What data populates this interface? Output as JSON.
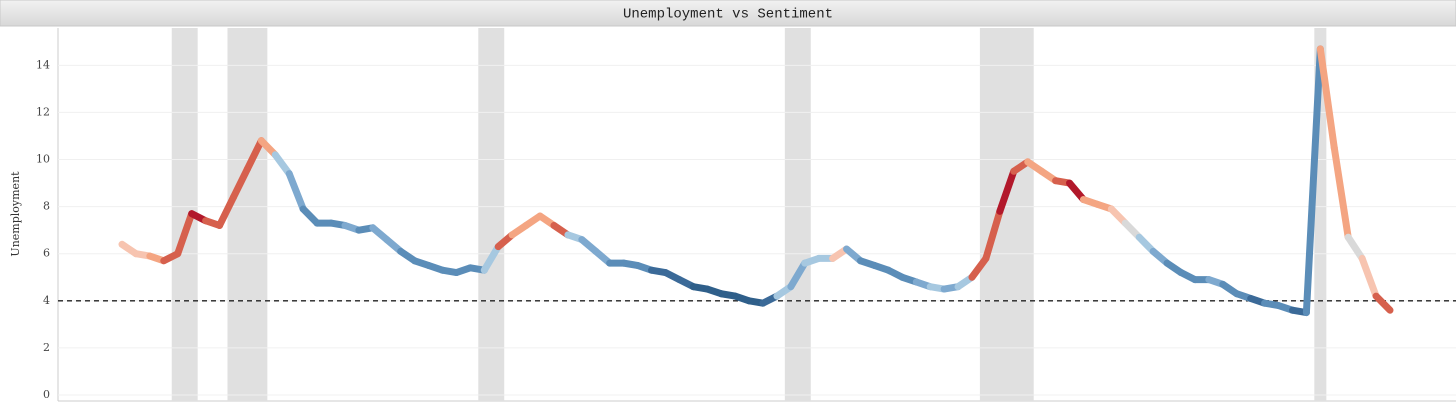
{
  "chart_data": {
    "type": "line",
    "title": "Unemployment vs Sentiment",
    "y_label": "Unemployment",
    "categories": [
      null,
      null,
      null,
      null,
      null,
      null,
      null,
      null,
      null,
      null,
      null,
      null,
      null,
      null,
      null,
      null,
      null,
      null,
      null,
      null,
      null,
      null,
      null,
      null,
      null,
      null,
      null,
      null,
      null,
      null,
      null,
      null,
      null,
      null,
      null,
      null,
      null,
      null,
      null,
      null,
      null,
      null,
      null,
      null,
      null,
      null,
      null,
      null,
      null,
      null,
      null,
      null,
      null,
      null,
      null,
      null,
      null,
      null,
      null,
      null,
      null,
      null,
      null,
      null,
      null,
      null,
      null,
      null,
      null,
      null,
      null,
      null,
      null,
      null,
      null,
      null,
      null,
      null,
      null,
      null,
      null,
      null,
      null,
      null,
      null,
      null,
      null,
      null,
      null,
      null,
      null,
      null
    ],
    "values": [
      6.4,
      6.0,
      5.9,
      5.7,
      6.0,
      7.7,
      7.4,
      7.2,
      8.4,
      9.6,
      10.8,
      10.2,
      9.4,
      7.9,
      7.3,
      7.3,
      7.2,
      7.0,
      7.1,
      6.6,
      6.1,
      5.7,
      5.5,
      5.3,
      5.2,
      5.4,
      5.3,
      6.3,
      6.8,
      7.2,
      7.6,
      7.2,
      6.8,
      6.6,
      6.1,
      5.6,
      5.6,
      5.5,
      5.3,
      5.2,
      4.9,
      4.6,
      4.5,
      4.3,
      4.2,
      4.0,
      3.9,
      4.2,
      4.6,
      5.6,
      5.8,
      5.8,
      6.2,
      5.7,
      5.5,
      5.3,
      5.0,
      4.8,
      4.6,
      4.5,
      4.6,
      5.0,
      5.8,
      7.8,
      9.5,
      9.9,
      9.5,
      9.1,
      9.0,
      8.3,
      8.1,
      7.9,
      7.3,
      6.7,
      6.1,
      5.6,
      5.2,
      4.9,
      4.9,
      4.7,
      4.3,
      4.1,
      3.9,
      3.8,
      3.6,
      3.5,
      14.7,
      10.5,
      6.7,
      5.8,
      4.2,
      3.6
    ],
    "colors": [
      "#f7c4b0",
      "#f7c4b0",
      "#f4a582",
      "#d6604d",
      "#d6604d",
      "#b2182b",
      "#d6604d",
      "#d6604d",
      "#d6604d",
      "#d6604d",
      "#f4a582",
      "#a6c8e0",
      "#7ea9cf",
      "#5b8db8",
      "#5b8db8",
      "#5b8db8",
      "#7ea9cf",
      "#5b8db8",
      "#7ea9cf",
      "#7ea9cf",
      "#5b8db8",
      "#5b8db8",
      "#5b8db8",
      "#5b8db8",
      "#5b8db8",
      "#5b8db8",
      "#a6c8e0",
      "#d6604d",
      "#f4a582",
      "#f4a582",
      "#f4a582",
      "#d6604d",
      "#a6c8e0",
      "#7ea9cf",
      "#7ea9cf",
      "#5b8db8",
      "#5b8db8",
      "#5b8db8",
      "#3b6a98",
      "#3b6a98",
      "#3b6a98",
      "#2f5f8a",
      "#2f5f8a",
      "#2f5f8a",
      "#2f5f8a",
      "#2f5f8a",
      "#3b6a98",
      "#a6c8e0",
      "#7ea9cf",
      "#a6c8e0",
      "#a6c8e0",
      "#f7c4b0",
      "#7ea9cf",
      "#5b8db8",
      "#5b8db8",
      "#5b8db8",
      "#5b8db8",
      "#7ea9cf",
      "#a6c8e0",
      "#7ea9cf",
      "#a6c8e0",
      "#d6604d",
      "#d6604d",
      "#b2182b",
      "#d6604d",
      "#f4a582",
      "#f4a582",
      "#d6604d",
      "#b2182b",
      "#f4a582",
      "#f4a582",
      "#f7c4b0",
      "#d9d9d9",
      "#a6c8e0",
      "#7ea9cf",
      "#5b8db8",
      "#5b8db8",
      "#5b8db8",
      "#7ea9cf",
      "#5b8db8",
      "#5b8db8",
      "#3b6a98",
      "#5b8db8",
      "#5b8db8",
      "#3b6a98",
      "#5b8db8",
      "#f4a582",
      "#f4a582",
      "#d9d9d9",
      "#f7c4b0",
      "#d6604d",
      "#d6604d"
    ],
    "bands": [
      [
        4,
        5
      ],
      [
        8,
        10
      ],
      [
        26,
        27
      ],
      [
        48,
        49
      ],
      [
        62,
        65
      ],
      [
        86,
        86
      ]
    ],
    "reference_line": 4,
    "ylim": [
      0,
      15.5
    ],
    "yticks": [
      0,
      2,
      4,
      6,
      8,
      10,
      12,
      14
    ],
    "grid": true
  }
}
